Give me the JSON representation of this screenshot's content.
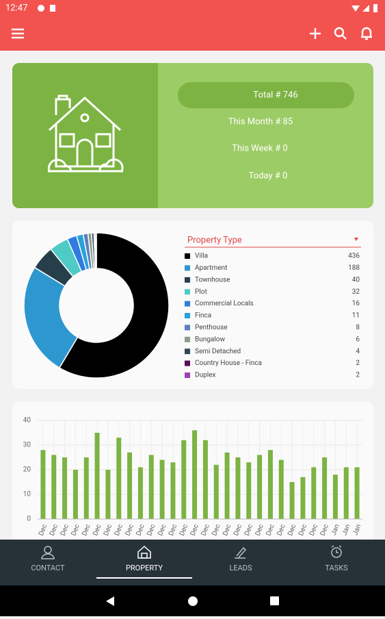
{
  "status_bar": {
    "time": "12:47"
  },
  "summary": {
    "total": "Total # 746",
    "month": "This Month # 85",
    "week": "This Week # 0",
    "today": "Today # 0"
  },
  "chart_data": [
    {
      "type": "donut",
      "title": "Property Type",
      "categories": [
        "Villa",
        "Apartment",
        "Townhouse",
        "Plot",
        "Commercial Locals",
        "Finca",
        "Penthouse",
        "Bungalow",
        "Semi Detached",
        "Country House - Finca",
        "Duplex"
      ],
      "values": [
        436,
        188,
        40,
        32,
        16,
        11,
        8,
        6,
        4,
        2,
        2
      ],
      "colors": [
        "#000000",
        "#2f97cf",
        "#263f4a",
        "#4fcbc6",
        "#2f7be0",
        "#2aa2d8",
        "#5c7fc0",
        "#8e9c88",
        "#2e4853",
        "#5a0a5c",
        "#9b40b6"
      ]
    },
    {
      "type": "bar",
      "color": "#7cb342",
      "categories": [
        "Dec",
        "Dec",
        "Dec",
        "Dec",
        "Dec",
        "Dec",
        "Dec",
        "Dec",
        "Dec",
        "Dec",
        "Dec",
        "Dec",
        "Dec",
        "Dec",
        "Dec",
        "Dec",
        "Dec",
        "Dec",
        "Dec",
        "Dec",
        "Dec",
        "Dec",
        "Dec",
        "Dec",
        "Dec",
        "Dec",
        "Dec",
        "Jan",
        "Jan",
        "Jan"
      ],
      "values": [
        28,
        26,
        25,
        20,
        25,
        35,
        20,
        33,
        27,
        21,
        26,
        24,
        23,
        32,
        36,
        32,
        22,
        27,
        25,
        23,
        26,
        28,
        24,
        15,
        17,
        21,
        25,
        18,
        21,
        21
      ],
      "ylim": [
        0,
        40
      ],
      "yticks": [
        0,
        10,
        20,
        30,
        40
      ],
      "grid": true
    }
  ],
  "nav": {
    "items": [
      "CONTACT",
      "PROPERTY",
      "LEADS",
      "TASKS"
    ],
    "selected": 1
  }
}
